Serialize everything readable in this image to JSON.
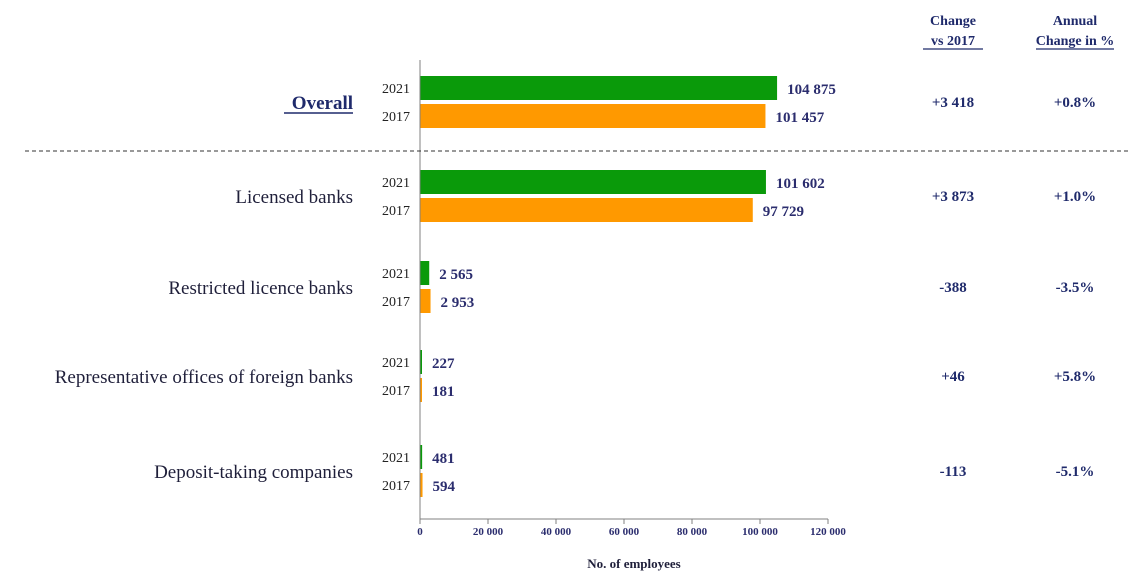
{
  "chart_data": {
    "type": "bar",
    "orientation": "horizontal",
    "categories": [
      "Overall",
      "Licensed banks",
      "Restricted licence banks",
      "Representative offices of foreign banks",
      "Deposit-taking companies"
    ],
    "series": [
      {
        "name": "2021",
        "color": "#0a9a0a",
        "values": [
          104875,
          101602,
          2565,
          227,
          481
        ],
        "labels": [
          "104 875",
          "101 602",
          "2 565",
          "227",
          "481"
        ]
      },
      {
        "name": "2017",
        "color": "#ff9900",
        "values": [
          101457,
          97729,
          2953,
          181,
          594
        ],
        "labels": [
          "101 457",
          "97 729",
          "2 953",
          "181",
          "594"
        ]
      }
    ],
    "xlabel": "No. of employees",
    "xlim": [
      0,
      120000
    ],
    "xticks": [
      0,
      20000,
      40000,
      60000,
      80000,
      100000,
      120000
    ],
    "xtick_labels": [
      "0",
      "20 000",
      "40 000",
      "60 000",
      "80 000",
      "100 000",
      "120 000"
    ],
    "grid": false,
    "table": {
      "headers": [
        [
          "Change",
          "vs 2017"
        ],
        [
          "Annual",
          "Change in %"
        ]
      ],
      "rows": [
        [
          "+3 418",
          "+0.8%"
        ],
        [
          "+3 873",
          "+1.0%"
        ],
        [
          "-388",
          "-3.5%"
        ],
        [
          "+46",
          "+5.8%"
        ],
        [
          "-113",
          "-5.1%"
        ]
      ]
    }
  }
}
